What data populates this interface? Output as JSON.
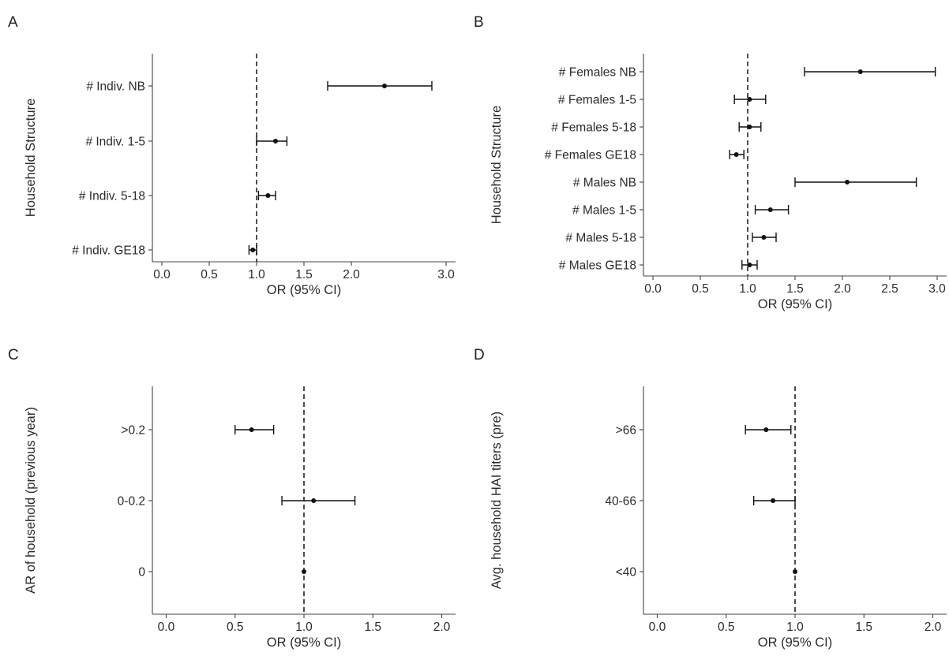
{
  "chart_data": [
    {
      "panel": "A",
      "type": "forest",
      "xlabel": "OR (95% CI)",
      "ylabel": "Household Structure",
      "xlim": [
        -0.1,
        3.1
      ],
      "xticks": [
        0.0,
        0.5,
        1.0,
        1.5,
        2.0,
        3.0
      ],
      "xtick_labels": [
        "0.0",
        "0.5",
        "1.0",
        "1.5",
        "2.0",
        "3.0"
      ],
      "reference_line": 1.0,
      "rows": [
        {
          "label": "# Indiv. NB",
          "or": 2.35,
          "lo": 1.75,
          "hi": 2.85
        },
        {
          "label": "# Indiv. 1-5",
          "or": 1.2,
          "lo": 1.0,
          "hi": 1.32
        },
        {
          "label": "# Indiv. 5-18",
          "or": 1.12,
          "lo": 1.02,
          "hi": 1.2
        },
        {
          "label": "# Indiv. GE18",
          "or": 0.96,
          "lo": 0.92,
          "hi": 1.0
        }
      ]
    },
    {
      "panel": "B",
      "type": "forest",
      "xlabel": "OR (95% CI)",
      "ylabel": "Household Structure",
      "xlim": [
        -0.1,
        3.1
      ],
      "xticks": [
        0.0,
        0.5,
        1.0,
        1.5,
        2.0,
        2.5,
        3.0
      ],
      "xtick_labels": [
        "0.0",
        "0.5",
        "1.0",
        "1.5",
        "2.0",
        "2.5",
        "3.0"
      ],
      "reference_line": 1.0,
      "rows": [
        {
          "label": "# Females NB",
          "or": 2.19,
          "lo": 1.6,
          "hi": 2.98
        },
        {
          "label": "# Females 1-5",
          "or": 1.02,
          "lo": 0.86,
          "hi": 1.19
        },
        {
          "label": "# Females 5-18",
          "or": 1.02,
          "lo": 0.91,
          "hi": 1.14
        },
        {
          "label": "# Females GE18",
          "or": 0.88,
          "lo": 0.81,
          "hi": 0.96
        },
        {
          "label": "# Males NB",
          "or": 2.05,
          "lo": 1.5,
          "hi": 2.78
        },
        {
          "label": "# Males 1-5",
          "or": 1.24,
          "lo": 1.08,
          "hi": 1.43
        },
        {
          "label": "# Males 5-18",
          "or": 1.17,
          "lo": 1.05,
          "hi": 1.3
        },
        {
          "label": "# Males GE18",
          "or": 1.02,
          "lo": 0.94,
          "hi": 1.1
        }
      ]
    },
    {
      "panel": "C",
      "type": "forest",
      "xlabel": "OR (95% CI)",
      "ylabel": "AR of household (previous year)",
      "xlim": [
        -0.1,
        2.1
      ],
      "xticks": [
        0.0,
        0.5,
        1.0,
        1.5,
        2.0
      ],
      "xtick_labels": [
        "0.0",
        "0.5",
        "1.0",
        "1.5",
        "2.0"
      ],
      "reference_line": 1.0,
      "rows": [
        {
          "label": ">0.2",
          "or": 0.62,
          "lo": 0.5,
          "hi": 0.78
        },
        {
          "label": "0-0.2",
          "or": 1.07,
          "lo": 0.84,
          "hi": 1.37
        },
        {
          "label": "0",
          "or": 1.0,
          "lo": 1.0,
          "hi": 1.0
        }
      ]
    },
    {
      "panel": "D",
      "type": "forest",
      "xlabel": "OR (95% CI)",
      "ylabel": "Avg. household HAI titers (pre)",
      "xlim": [
        -0.1,
        2.1
      ],
      "xticks": [
        0.0,
        0.5,
        1.0,
        1.5,
        2.0
      ],
      "xtick_labels": [
        "0.0",
        "0.5",
        "1.0",
        "1.5",
        "2.0"
      ],
      "reference_line": 1.0,
      "rows": [
        {
          "label": ">66",
          "or": 0.79,
          "lo": 0.64,
          "hi": 0.97
        },
        {
          "label": "40-66",
          "or": 0.84,
          "lo": 0.7,
          "hi": 1.0
        },
        {
          "label": "<40",
          "or": 1.0,
          "lo": 1.0,
          "hi": 1.0
        }
      ]
    }
  ]
}
